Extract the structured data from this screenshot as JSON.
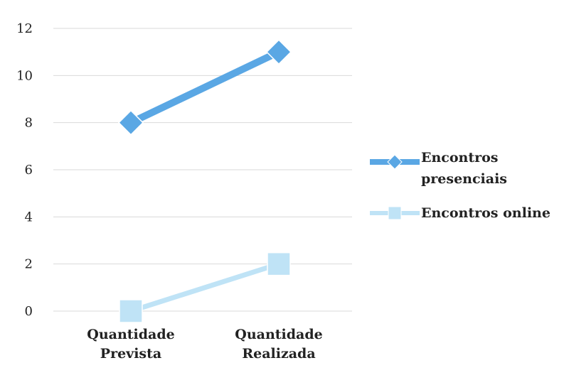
{
  "chart_data": {
    "type": "line",
    "categories": [
      [
        "Quantidade",
        "Prevista"
      ],
      [
        "Quantidade",
        "Realizada"
      ]
    ],
    "series": [
      {
        "name": [
          "Encontros",
          "presenciais"
        ],
        "values": [
          8,
          11
        ],
        "color": "#5aa7e4",
        "marker": "diamond"
      },
      {
        "name": [
          "Encontros online"
        ],
        "values": [
          0,
          2
        ],
        "color": "#bfe3f6",
        "marker": "square"
      }
    ],
    "ylim": [
      0,
      12
    ],
    "yticks": [
      0,
      2,
      4,
      6,
      8,
      10,
      12
    ],
    "grid": true,
    "legend": "right"
  }
}
